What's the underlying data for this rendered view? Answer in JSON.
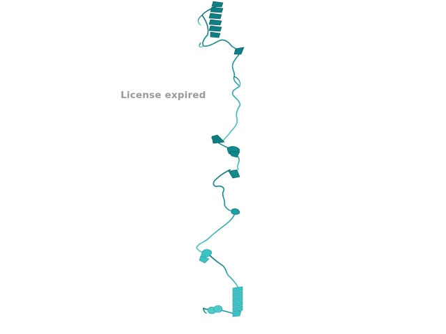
{
  "viewer": {
    "watermark": "License expired"
  },
  "structure": {
    "representation": "cartoon",
    "colors": {
      "dark": "#0e7f82",
      "mid": "#1a9ea2",
      "light": "#3cc2c4",
      "shade": "#075557"
    }
  }
}
